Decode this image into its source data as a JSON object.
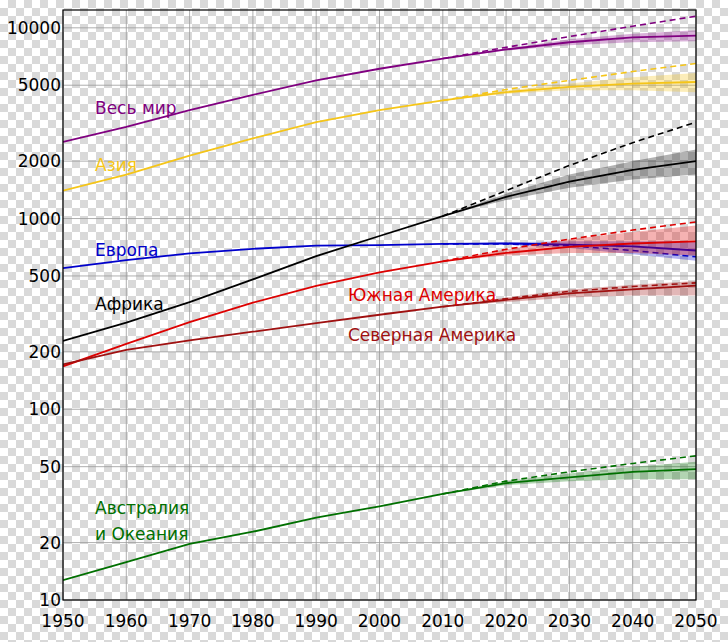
{
  "chart_data": {
    "type": "line",
    "log": "y",
    "grid": true,
    "x": [
      1950,
      1960,
      1970,
      1980,
      1990,
      2000,
      2010,
      2020,
      2030,
      2040,
      2050
    ],
    "xlim": [
      1950,
      2050
    ],
    "xticks": [
      1950,
      1960,
      1970,
      1980,
      1990,
      2000,
      2010,
      2020,
      2030,
      2040,
      2050
    ],
    "ylim": [
      10,
      12400
    ],
    "yticks": [
      10,
      20,
      50,
      100,
      200,
      500,
      1000,
      2000,
      5000,
      10000
    ],
    "series": [
      {
        "name": "Весь мир",
        "color": "#800080",
        "values": [
          2525,
          3020,
          3700,
          4450,
          5300,
          6100,
          6900,
          7700,
          8400,
          8900,
          9100
        ],
        "high": [
          null,
          null,
          null,
          null,
          null,
          null,
          6900,
          7900,
          9000,
          10200,
          11500
        ],
        "band_low": [
          null,
          null,
          null,
          null,
          null,
          null,
          6900,
          7600,
          8100,
          8400,
          8500
        ],
        "band_high": [
          null,
          null,
          null,
          null,
          null,
          null,
          6900,
          7800,
          8700,
          9300,
          9700
        ]
      },
      {
        "name": "Азия",
        "color": "#f5c518",
        "values": [
          1400,
          1700,
          2140,
          2630,
          3200,
          3700,
          4160,
          4600,
          4900,
          5100,
          5200
        ],
        "high": [
          null,
          null,
          null,
          null,
          null,
          null,
          4160,
          4750,
          5300,
          5900,
          6500
        ],
        "band_low": [
          null,
          null,
          null,
          null,
          null,
          null,
          4160,
          4500,
          4700,
          4700,
          4600
        ],
        "band_high": [
          null,
          null,
          null,
          null,
          null,
          null,
          4160,
          4700,
          5100,
          5500,
          5800
        ]
      },
      {
        "name": "Европа",
        "color": "#0000cc",
        "values": [
          550,
          605,
          657,
          694,
          721,
          726,
          736,
          740,
          730,
          715,
          680
        ],
        "high": [
          null,
          null,
          null,
          null,
          null,
          null,
          736,
          735,
          720,
          680,
          630
        ],
        "band_low": [
          null,
          null,
          null,
          null,
          null,
          null,
          736,
          730,
          700,
          650,
          600
        ],
        "band_high": [
          null,
          null,
          null,
          null,
          null,
          null,
          736,
          750,
          760,
          760,
          760
        ]
      },
      {
        "name": "Африка",
        "color": "#000000",
        "values": [
          228,
          285,
          365,
          480,
          635,
          810,
          1030,
          1300,
          1560,
          1800,
          2000
        ],
        "high": [
          null,
          null,
          null,
          null,
          null,
          null,
          1030,
          1400,
          1900,
          2500,
          3200
        ],
        "band_low": [
          null,
          null,
          null,
          null,
          null,
          null,
          1030,
          1250,
          1450,
          1600,
          1700
        ],
        "band_high": [
          null,
          null,
          null,
          null,
          null,
          null,
          1030,
          1350,
          1700,
          2000,
          2300
        ]
      },
      {
        "name": "Южная Америка",
        "color": "#dd0000",
        "values": [
          168,
          220,
          286,
          362,
          443,
          522,
          597,
          660,
          710,
          740,
          760
        ],
        "high": [
          null,
          null,
          null,
          null,
          null,
          null,
          597,
          690,
          780,
          870,
          960
        ],
        "band_low": [
          null,
          null,
          null,
          null,
          null,
          null,
          597,
          640,
          660,
          660,
          640
        ],
        "band_high": [
          null,
          null,
          null,
          null,
          null,
          null,
          597,
          690,
          780,
          850,
          920
        ]
      },
      {
        "name": "Северная Америка",
        "color": "#a01010",
        "values": [
          172,
          205,
          230,
          255,
          283,
          313,
          345,
          375,
          405,
          425,
          445
        ],
        "high": [
          null,
          null,
          null,
          null,
          null,
          null,
          345,
          380,
          415,
          440,
          460
        ],
        "band_low": [
          null,
          null,
          null,
          null,
          null,
          null,
          345,
          365,
          385,
          395,
          395
        ],
        "band_high": [
          null,
          null,
          null,
          null,
          null,
          null,
          345,
          385,
          425,
          450,
          470
        ]
      },
      {
        "name": "Австралия и Океания",
        "color": "#007000",
        "values": [
          12.7,
          15.8,
          19.7,
          22.8,
          27,
          31,
          36,
          41,
          44,
          47,
          48.5
        ],
        "high": [
          null,
          null,
          null,
          null,
          null,
          null,
          36,
          42,
          47,
          52,
          57
        ],
        "band_low": [
          null,
          null,
          null,
          null,
          null,
          null,
          36,
          40,
          42,
          43,
          43
        ],
        "band_high": [
          null,
          null,
          null,
          null,
          null,
          null,
          36,
          42,
          46,
          50,
          53
        ]
      }
    ]
  }
}
